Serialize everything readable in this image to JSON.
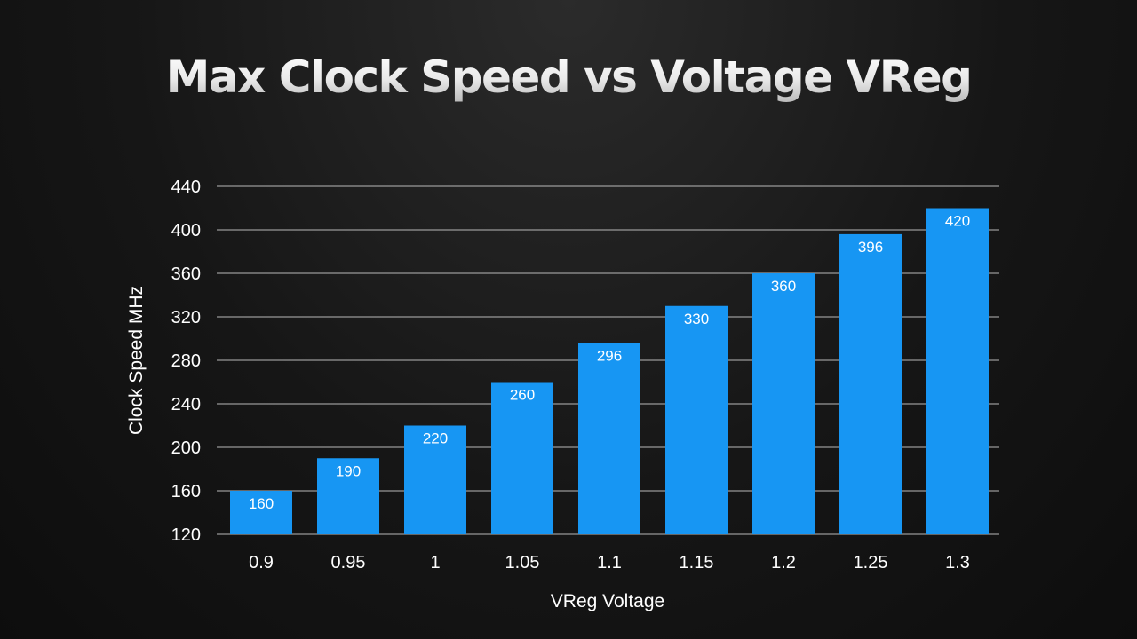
{
  "colors": {
    "bar": "#1796f3",
    "grid": "#b8b8b8",
    "text": "#ffffff",
    "background": "#161616"
  },
  "chart_data": {
    "type": "bar",
    "title": "Max Clock Speed vs Voltage VReg",
    "xlabel": "VReg Voltage",
    "ylabel": "Clock Speed MHz",
    "categories": [
      "0.9",
      "0.95",
      "1",
      "1.05",
      "1.1",
      "1.15",
      "1.2",
      "1.25",
      "1.3"
    ],
    "values": [
      160,
      190,
      220,
      260,
      296,
      330,
      360,
      396,
      420
    ],
    "ylim": [
      120,
      440
    ],
    "yticks": [
      120,
      160,
      200,
      240,
      280,
      320,
      360,
      400,
      440
    ],
    "grid": true,
    "data_labels": true
  }
}
